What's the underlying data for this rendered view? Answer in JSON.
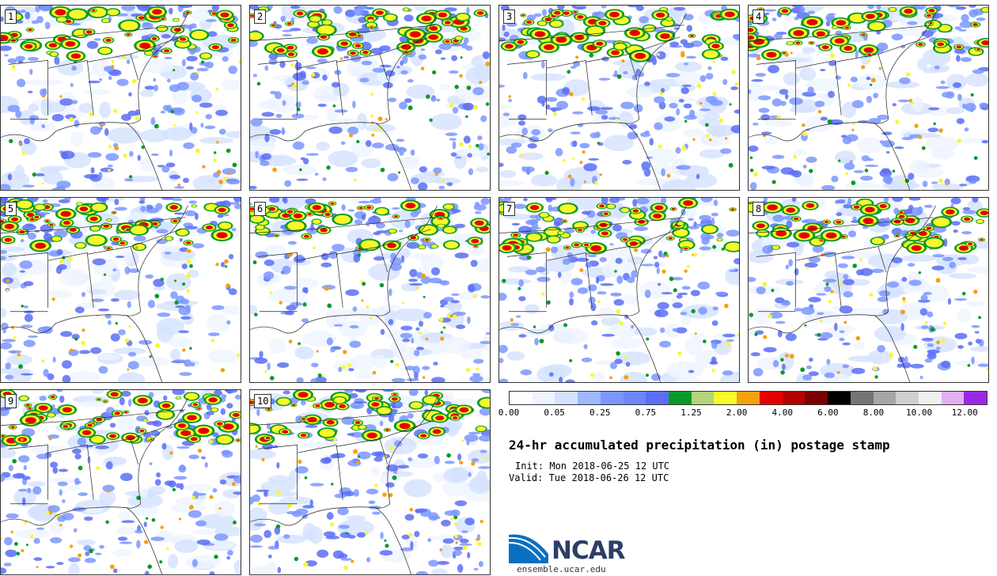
{
  "stamps": [
    {
      "label": "1"
    },
    {
      "label": "2"
    },
    {
      "label": "3"
    },
    {
      "label": "4"
    },
    {
      "label": "5"
    },
    {
      "label": "6"
    },
    {
      "label": "7"
    },
    {
      "label": "8"
    },
    {
      "label": "9"
    },
    {
      "label": "10"
    }
  ],
  "colorbar": {
    "colors": [
      "#ffffff",
      "#eef4ff",
      "#d4e2ff",
      "#9db8ff",
      "#7b96ff",
      "#6f86fb",
      "#5b6ef5",
      "#0a9a2a",
      "#b5d47a",
      "#f8f82a",
      "#f5a00f",
      "#e60000",
      "#b50000",
      "#7a0000",
      "#000000",
      "#757575",
      "#a6a6a6",
      "#cfcfcf",
      "#f0f0f0",
      "#e2b0f0",
      "#9a2ae2"
    ],
    "tick_labels": [
      "0.00",
      "0.05",
      "0.25",
      "0.75",
      "1.25",
      "2.00",
      "4.00",
      "6.00",
      "8.00",
      "10.00",
      "12.00"
    ]
  },
  "title": "24-hr accumulated precipitation (in) postage stamp",
  "init": "Init: Mon 2018-06-25 12 UTC",
  "valid": "Valid: Tue 2018-06-26 12 UTC",
  "logo": {
    "word": "NCAR",
    "url": "ensemble.ucar.edu"
  }
}
